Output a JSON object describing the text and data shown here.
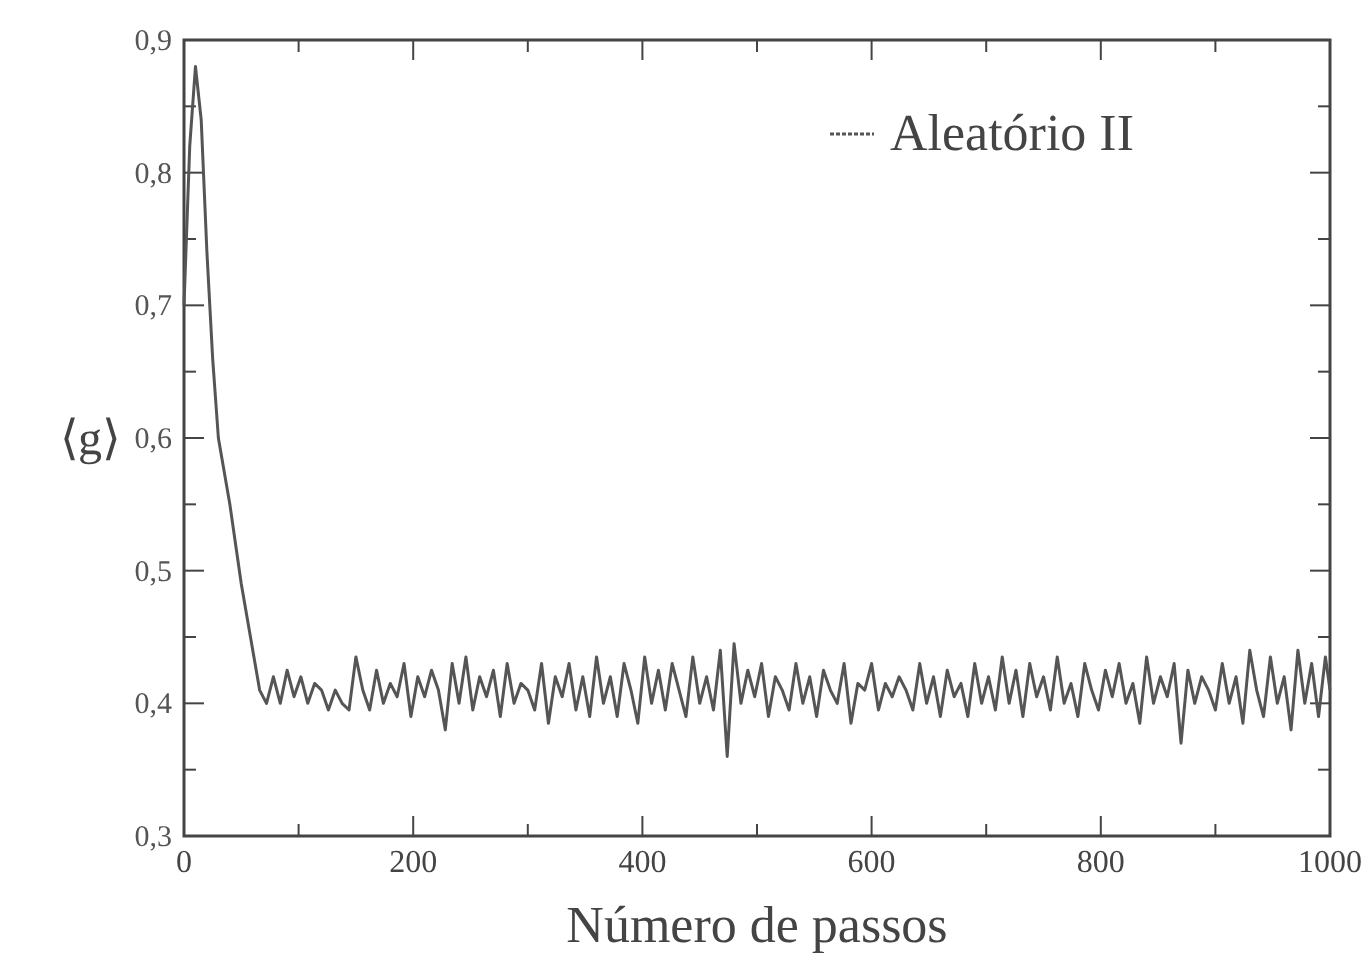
{
  "chart_data": {
    "type": "line",
    "xlabel": "Número de passos",
    "ylabel": "⟨g⟩",
    "xlim": [
      0,
      1000
    ],
    "ylim": [
      0.3,
      0.9
    ],
    "xticks": [
      0,
      {
        "value": 100,
        "label": null
      },
      200,
      {
        "value": 300,
        "label": null
      },
      400,
      {
        "value": 500,
        "label": null
      },
      600,
      {
        "value": 700,
        "label": null
      },
      800,
      {
        "value": 900,
        "label": null
      },
      1000
    ],
    "yticks": [
      {
        "value": 0.3,
        "label": "0,3"
      },
      {
        "value": 0.35,
        "label": null
      },
      {
        "value": 0.4,
        "label": "0,4"
      },
      {
        "value": 0.45,
        "label": null
      },
      {
        "value": 0.5,
        "label": "0,5"
      },
      {
        "value": 0.55,
        "label": null
      },
      {
        "value": 0.6,
        "label": "0,6"
      },
      {
        "value": 0.65,
        "label": null
      },
      {
        "value": 0.7,
        "label": "0,7"
      },
      {
        "value": 0.75,
        "label": null
      },
      {
        "value": 0.8,
        "label": "0,8"
      },
      {
        "value": 0.85,
        "label": null
      },
      {
        "value": 0.9,
        "label": "0,9"
      }
    ],
    "grid": false,
    "legend": "top right",
    "line_style": "solid",
    "x": [
      0,
      5,
      10,
      15,
      20,
      25,
      30,
      40,
      50,
      60,
      66,
      72,
      78,
      84,
      90,
      96,
      102,
      108,
      114,
      120,
      126,
      132,
      138,
      144,
      150,
      156,
      162,
      168,
      174,
      180,
      186,
      192,
      198,
      204,
      210,
      216,
      222,
      228,
      234,
      240,
      246,
      252,
      258,
      264,
      270,
      276,
      282,
      288,
      294,
      300,
      306,
      312,
      318,
      324,
      330,
      336,
      342,
      348,
      354,
      360,
      366,
      372,
      378,
      384,
      390,
      396,
      402,
      408,
      414,
      420,
      426,
      432,
      438,
      444,
      450,
      456,
      462,
      468,
      474,
      480,
      486,
      492,
      498,
      504,
      510,
      516,
      522,
      528,
      534,
      540,
      546,
      552,
      558,
      564,
      570,
      576,
      582,
      588,
      594,
      600,
      606,
      612,
      618,
      624,
      630,
      636,
      642,
      648,
      654,
      660,
      666,
      672,
      678,
      684,
      690,
      696,
      702,
      708,
      714,
      720,
      726,
      732,
      738,
      744,
      750,
      756,
      762,
      768,
      774,
      780,
      786,
      792,
      798,
      804,
      810,
      816,
      822,
      828,
      834,
      840,
      846,
      852,
      858,
      864,
      870,
      876,
      882,
      888,
      894,
      900,
      906,
      912,
      918,
      924,
      930,
      936,
      942,
      948,
      954,
      960,
      966,
      972,
      978,
      984,
      990,
      996,
      1000
    ],
    "series": [
      {
        "name": "Aleatório II",
        "color": "#555555",
        "values": [
          0.7,
          0.82,
          0.88,
          0.84,
          0.74,
          0.66,
          0.6,
          0.55,
          0.49,
          0.44,
          0.41,
          0.4,
          0.42,
          0.4,
          0.425,
          0.405,
          0.42,
          0.4,
          0.415,
          0.41,
          0.395,
          0.41,
          0.4,
          0.395,
          0.435,
          0.41,
          0.395,
          0.425,
          0.4,
          0.415,
          0.405,
          0.43,
          0.39,
          0.42,
          0.405,
          0.425,
          0.41,
          0.38,
          0.43,
          0.4,
          0.435,
          0.395,
          0.42,
          0.405,
          0.425,
          0.39,
          0.43,
          0.4,
          0.415,
          0.41,
          0.395,
          0.43,
          0.385,
          0.42,
          0.405,
          0.43,
          0.395,
          0.42,
          0.39,
          0.435,
          0.4,
          0.42,
          0.39,
          0.43,
          0.41,
          0.385,
          0.435,
          0.4,
          0.425,
          0.395,
          0.43,
          0.41,
          0.39,
          0.435,
          0.4,
          0.42,
          0.395,
          0.44,
          0.36,
          0.445,
          0.4,
          0.425,
          0.405,
          0.43,
          0.39,
          0.42,
          0.41,
          0.395,
          0.43,
          0.4,
          0.42,
          0.39,
          0.425,
          0.41,
          0.4,
          0.43,
          0.385,
          0.415,
          0.41,
          0.43,
          0.395,
          0.415,
          0.405,
          0.42,
          0.41,
          0.395,
          0.43,
          0.4,
          0.42,
          0.39,
          0.425,
          0.405,
          0.415,
          0.39,
          0.43,
          0.4,
          0.42,
          0.395,
          0.435,
          0.4,
          0.425,
          0.39,
          0.43,
          0.405,
          0.42,
          0.395,
          0.435,
          0.4,
          0.415,
          0.39,
          0.43,
          0.41,
          0.395,
          0.425,
          0.405,
          0.43,
          0.4,
          0.415,
          0.385,
          0.435,
          0.4,
          0.42,
          0.405,
          0.43,
          0.37,
          0.425,
          0.4,
          0.42,
          0.41,
          0.395,
          0.43,
          0.4,
          0.42,
          0.385,
          0.44,
          0.41,
          0.39,
          0.435,
          0.4,
          0.42,
          0.38,
          0.44,
          0.4,
          0.43,
          0.39,
          0.435,
          0.41
        ]
      }
    ]
  }
}
